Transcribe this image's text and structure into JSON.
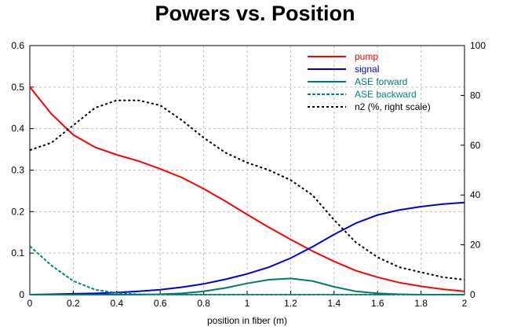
{
  "chart_data": {
    "type": "line",
    "title": "Powers vs. Position",
    "xlabel": "position in fiber (m)",
    "ylabel": "",
    "y2label": "",
    "xlim": [
      0,
      2
    ],
    "ylim": [
      0,
      0.6
    ],
    "y2lim": [
      0,
      100
    ],
    "xticks": [
      "0",
      "0.2",
      "0.4",
      "0.6",
      "0.8",
      "1",
      "1.2",
      "1.4",
      "1.6",
      "1.8",
      "2"
    ],
    "yticks": [
      "0",
      "0.1",
      "0.2",
      "0.3",
      "0.4",
      "0.5",
      "0.6"
    ],
    "y2ticks": [
      "0",
      "20",
      "40",
      "60",
      "80",
      "100"
    ],
    "grid": true,
    "legend_position": "top-right",
    "x": [
      0,
      0.1,
      0.2,
      0.3,
      0.4,
      0.5,
      0.6,
      0.7,
      0.8,
      0.9,
      1.0,
      1.1,
      1.2,
      1.3,
      1.4,
      1.5,
      1.6,
      1.7,
      1.8,
      1.9,
      2.0
    ],
    "series": [
      {
        "name": "pump",
        "color": "#ff0000",
        "dash": "solid",
        "axis": "left",
        "values": [
          0.5,
          0.435,
          0.385,
          0.355,
          0.337,
          0.322,
          0.303,
          0.282,
          0.255,
          0.225,
          0.193,
          0.162,
          0.133,
          0.105,
          0.08,
          0.058,
          0.042,
          0.029,
          0.02,
          0.013,
          0.008
        ]
      },
      {
        "name": "signal",
        "color": "#0000dd",
        "dash": "solid",
        "axis": "left",
        "values": [
          0.0,
          0.001,
          0.002,
          0.003,
          0.005,
          0.008,
          0.012,
          0.018,
          0.026,
          0.037,
          0.05,
          0.066,
          0.088,
          0.115,
          0.145,
          0.172,
          0.192,
          0.204,
          0.212,
          0.218,
          0.222
        ]
      },
      {
        "name": "ASE forward",
        "color": "#007a6e",
        "dash": "solid",
        "axis": "left",
        "values": [
          0.0,
          0.0,
          0.0,
          0.0,
          0.0,
          0.0,
          0.001,
          0.003,
          0.008,
          0.016,
          0.027,
          0.036,
          0.039,
          0.033,
          0.019,
          0.008,
          0.003,
          0.001,
          0.0,
          0.0,
          0.0
        ]
      },
      {
        "name": "ASE backward",
        "color": "#00897b",
        "dash": "dashed",
        "axis": "left",
        "values": [
          0.117,
          0.07,
          0.033,
          0.012,
          0.004,
          0.001,
          0.0,
          0.0,
          0.0,
          0.0,
          0.0,
          0.0,
          0.0,
          0.0,
          0.0,
          0.0,
          0.0,
          0.0,
          0.0,
          0.0,
          0.0
        ]
      },
      {
        "name": "n2 (%, right scale)",
        "color": "#000000",
        "dash": "dotted",
        "axis": "right",
        "values": [
          58,
          61,
          68,
          75,
          78,
          78,
          76,
          70,
          63,
          57,
          53,
          50,
          46,
          40,
          30,
          21,
          15,
          11,
          9,
          7,
          6
        ]
      }
    ]
  }
}
